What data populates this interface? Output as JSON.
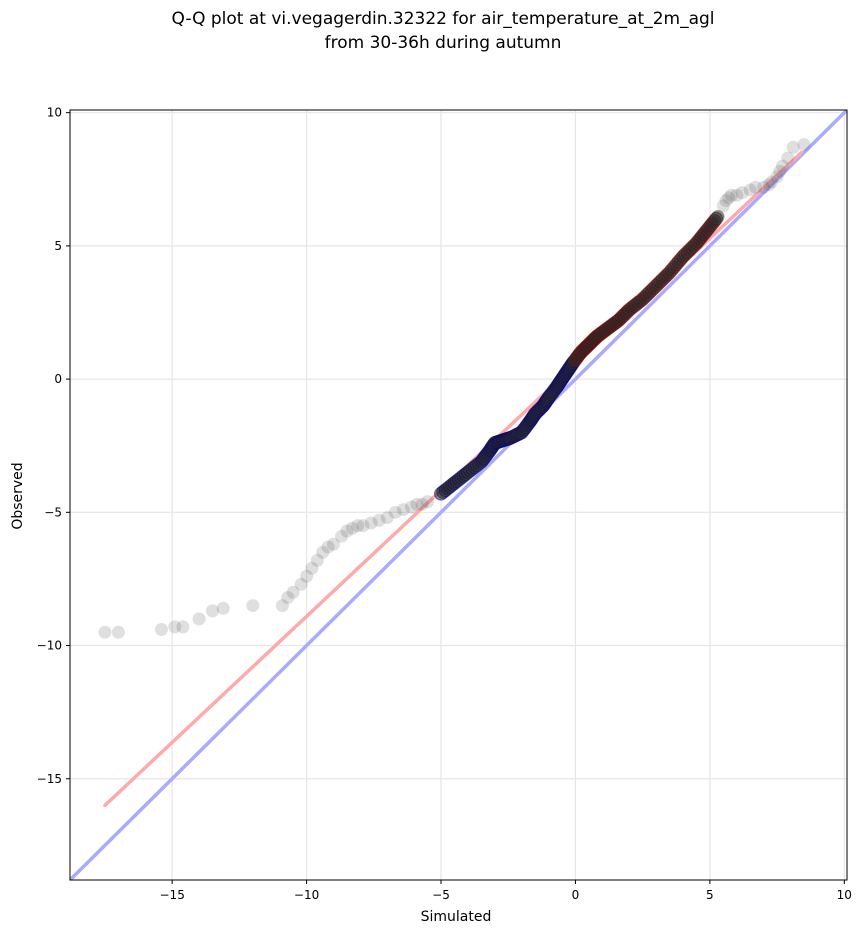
{
  "chart_data": {
    "type": "scatter",
    "title": [
      "Q-Q plot at vi.vegagerdin.32322 for air_temperature_at_2m_agl",
      "from 30-36h during autumn"
    ],
    "xlabel": "Simulated",
    "ylabel": "Observed",
    "xlim": [
      -18.8,
      10.1
    ],
    "ylim": [
      -18.8,
      10.1
    ],
    "xticks": [
      -15,
      -10,
      -5,
      0,
      5,
      10
    ],
    "yticks": [
      -15,
      -10,
      -5,
      0,
      5,
      10
    ],
    "xtick_labels": [
      "−15",
      "−10",
      "−5",
      "0",
      "5",
      "10"
    ],
    "ytick_labels": [
      "−15",
      "−10",
      "−5",
      "0",
      "5",
      "10"
    ],
    "grid": true,
    "colors": {
      "points": "#4d4d4d",
      "one_to_one_line": "#aaaaff",
      "fit_line": "#ffaaaa",
      "core_outline_low": "#00007a",
      "core_outline_high": "#7a0000",
      "grid": "#e6e6e6"
    },
    "series": [
      {
        "kind": "quantile_points",
        "x": [
          -17.5,
          -17.0,
          -15.4,
          -14.9,
          -14.6,
          -14.0,
          -13.5,
          -13.1,
          -12.0,
          -10.9,
          -10.7,
          -10.5,
          -10.2,
          -10.0,
          -9.8,
          -9.6,
          -9.4,
          -9.2,
          -9.0,
          -8.7,
          -8.5,
          -8.3,
          -8.1,
          -7.9,
          -7.6,
          -7.3,
          -7.0,
          -6.7,
          -6.4,
          -6.1,
          -5.9,
          -5.7,
          -5.5
        ],
        "y": [
          -9.5,
          -9.5,
          -9.4,
          -9.3,
          -9.3,
          -9.0,
          -8.7,
          -8.6,
          -8.5,
          -8.5,
          -8.2,
          -8.0,
          -7.7,
          -7.4,
          -7.1,
          -6.8,
          -6.5,
          -6.3,
          -6.2,
          -5.9,
          -5.7,
          -5.6,
          -5.5,
          -5.5,
          -5.4,
          -5.3,
          -5.2,
          -5.0,
          -4.9,
          -4.8,
          -4.7,
          -4.7,
          -4.6
        ]
      },
      {
        "kind": "quantile_core",
        "x": [
          -5.0,
          -4.5,
          -4.0,
          -3.5,
          -3.2,
          -3.0,
          -2.7,
          -2.4,
          -2.0,
          -1.7,
          -1.5,
          -1.2,
          -1.0,
          -0.7,
          -0.5,
          -0.3,
          -0.1,
          0.2,
          0.5,
          0.8,
          1.2,
          1.6,
          2.0,
          2.5,
          3.0,
          3.5,
          4.0,
          4.5,
          4.9,
          5.3
        ],
        "y": [
          -4.3,
          -3.9,
          -3.5,
          -3.1,
          -2.7,
          -2.4,
          -2.3,
          -2.2,
          -2.0,
          -1.6,
          -1.3,
          -1.0,
          -0.7,
          -0.3,
          0.0,
          0.3,
          0.6,
          1.0,
          1.3,
          1.6,
          1.9,
          2.2,
          2.6,
          3.0,
          3.5,
          4.0,
          4.6,
          5.1,
          5.6,
          6.1
        ]
      },
      {
        "kind": "quantile_points",
        "x": [
          5.5,
          5.6,
          5.7,
          5.8,
          6.0,
          6.2,
          6.5,
          6.7,
          7.0,
          7.2,
          7.3,
          7.5,
          7.6,
          7.7,
          7.9,
          8.1,
          8.5
        ],
        "y": [
          6.5,
          6.7,
          6.8,
          6.9,
          6.9,
          7.0,
          7.1,
          7.2,
          7.2,
          7.3,
          7.4,
          7.6,
          7.8,
          8.0,
          8.3,
          8.7,
          8.8
        ]
      }
    ],
    "lines": [
      {
        "kind": "one_to_one",
        "x": [
          -18.8,
          10.1
        ],
        "y": [
          -18.8,
          10.1
        ]
      },
      {
        "kind": "fit",
        "x": [
          -17.5,
          8.4
        ],
        "y": [
          -16.0,
          8.5
        ]
      }
    ]
  }
}
